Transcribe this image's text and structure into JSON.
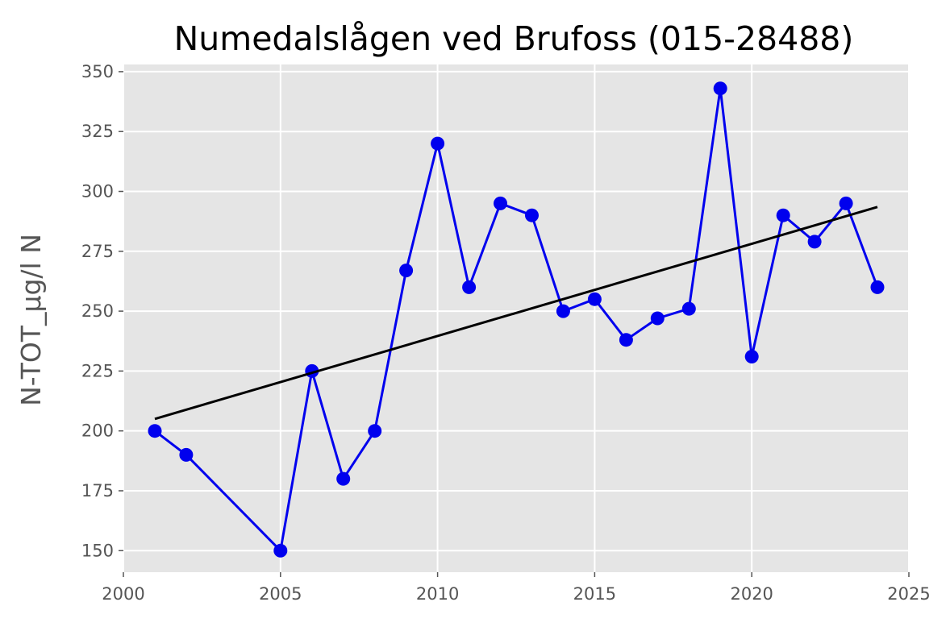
{
  "chart_data": {
    "type": "line",
    "title": "Numedalslågen ved Brufoss (015-28488)",
    "xlabel": "",
    "ylabel": "N-TOT_µg/l N",
    "xlim": [
      2000,
      2025
    ],
    "ylim": [
      141,
      353
    ],
    "xticks": [
      2000,
      2005,
      2010,
      2015,
      2020,
      2025
    ],
    "yticks": [
      150,
      175,
      200,
      225,
      250,
      275,
      300,
      325,
      350
    ],
    "grid": true,
    "legend": "none",
    "background_color": "#e5e5e5",
    "series": [
      {
        "color": "#0000ee",
        "marker": "circle",
        "x": [
          2001,
          2002,
          2005,
          2006,
          2007,
          2008,
          2009,
          2010,
          2011,
          2012,
          2013,
          2014,
          2015,
          2016,
          2017,
          2018,
          2019,
          2020,
          2021,
          2022,
          2023,
          2024
        ],
        "y": [
          200,
          190,
          150,
          225,
          180,
          200,
          267,
          320,
          260,
          295,
          290,
          250,
          255,
          238,
          247,
          251,
          343,
          231,
          290,
          279,
          295,
          260
        ]
      },
      {
        "color": "#000000",
        "marker": "none",
        "x": [
          2001,
          2024
        ],
        "y": [
          205,
          293.5
        ]
      }
    ]
  }
}
